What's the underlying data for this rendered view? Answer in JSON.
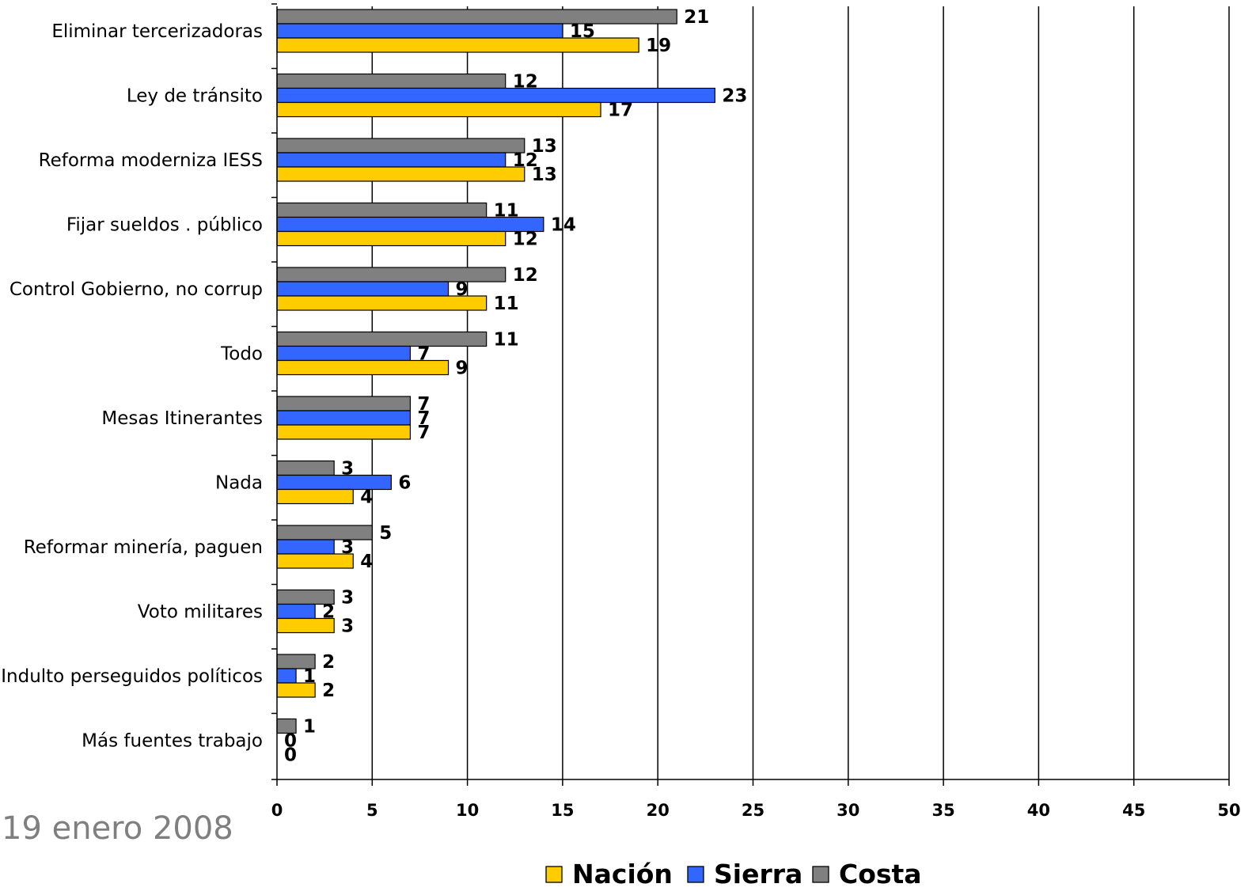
{
  "footer": {
    "date": "19 enero 2008"
  },
  "chart_data": {
    "type": "bar",
    "orientation": "horizontal",
    "title": "",
    "xlabel": "",
    "ylabel": "",
    "xlim": [
      0,
      50
    ],
    "x_ticks": [
      0,
      5,
      10,
      15,
      20,
      25,
      30,
      35,
      40,
      45,
      50
    ],
    "grid": "vertical",
    "legend_position": "bottom",
    "categories": [
      "Eliminar tercerizadoras",
      "Ley de tránsito",
      "Reforma moderniza IESS",
      "Fijar sueldos . público",
      "Control Gobierno, no corrup",
      "Todo",
      "Mesas Itinerantes",
      "Nada",
      "Reformar minería, paguen",
      "Voto militares",
      "Indulto perseguidos políticos",
      "Más fuentes trabajo"
    ],
    "series": [
      {
        "name": "Nación",
        "color": "#FFCC00",
        "values": [
          19,
          17,
          13,
          12,
          11,
          9,
          7,
          4,
          4,
          3,
          2,
          0
        ]
      },
      {
        "name": "Sierra",
        "color": "#3366FF",
        "values": [
          15,
          23,
          12,
          14,
          9,
          7,
          7,
          6,
          3,
          2,
          1,
          0
        ]
      },
      {
        "name": "Costa",
        "color": "#808080",
        "values": [
          21,
          12,
          13,
          11,
          12,
          11,
          7,
          3,
          5,
          3,
          2,
          1
        ]
      }
    ]
  }
}
